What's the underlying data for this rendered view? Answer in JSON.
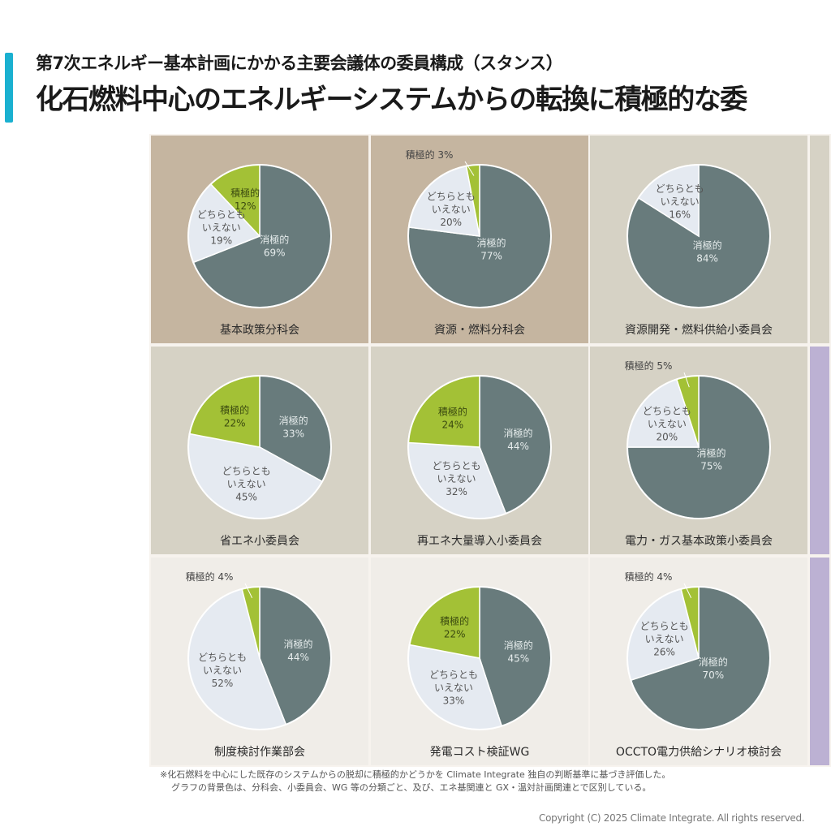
{
  "header": {
    "subtitle": "第7次エネルギー基本計画にかかる主要会議体の委員構成（スタンス）",
    "title": "化石燃料中心のエネルギーシステムからの転換に積極的な委",
    "accent_color": "#1ab0d0"
  },
  "colors": {
    "negative": "#687b7c",
    "neutral": "#e5eaf1",
    "positive": "#a3c136",
    "bg_bunkakai": "#c5b5a0",
    "bg_shoiinkai": "#d6d2c5",
    "bg_wg": "#f0ede8",
    "bg_gx": "#bcb1d3"
  },
  "category_labels": {
    "negative": "消極的",
    "neutral_line1": "どちらとも",
    "neutral_line2": "いえない",
    "positive": "積極的"
  },
  "chart_data": [
    {
      "type": "pie",
      "title": "基本政策分科会",
      "bg": "bg_bunkakai",
      "labels": [
        "積極的",
        "どちらともいえない",
        "消極的"
      ],
      "values": [
        12,
        19,
        69
      ]
    },
    {
      "type": "pie",
      "title": "資源・燃料分科会",
      "bg": "bg_bunkakai",
      "labels": [
        "積極的",
        "どちらともいえない",
        "消極的"
      ],
      "values": [
        3,
        20,
        77
      ]
    },
    {
      "type": "pie",
      "title": "資源開発・燃料供給小委員会",
      "bg": "bg_shoiinkai",
      "labels": [
        "積極的",
        "どちらともいえない",
        "消極的"
      ],
      "values": [
        0,
        16,
        84
      ]
    },
    {
      "type": "pie",
      "title": "省エネ小委員会",
      "bg": "bg_shoiinkai",
      "labels": [
        "積極的",
        "どちらともいえない",
        "消極的"
      ],
      "values": [
        22,
        45,
        33
      ]
    },
    {
      "type": "pie",
      "title": "再エネ大量導入小委員会",
      "bg": "bg_shoiinkai",
      "labels": [
        "積極的",
        "どちらともいえない",
        "消極的"
      ],
      "values": [
        24,
        32,
        44
      ]
    },
    {
      "type": "pie",
      "title": "電力・ガス基本政策小委員会",
      "bg": "bg_shoiinkai",
      "labels": [
        "積極的",
        "どちらともいえない",
        "消極的"
      ],
      "values": [
        5,
        20,
        75
      ]
    },
    {
      "type": "pie",
      "title": "制度検討作業部会",
      "bg": "bg_wg",
      "labels": [
        "積極的",
        "どちらともいえない",
        "消極的"
      ],
      "values": [
        4,
        52,
        44
      ]
    },
    {
      "type": "pie",
      "title": "発電コスト検証WG",
      "bg": "bg_wg",
      "labels": [
        "積極的",
        "どちらともいえない",
        "消極的"
      ],
      "values": [
        22,
        33,
        45
      ]
    },
    {
      "type": "pie",
      "title": "OCCTO電力供給シナリオ検討会",
      "bg": "bg_wg",
      "labels": [
        "積極的",
        "どちらともいえない",
        "消極的"
      ],
      "values": [
        4,
        26,
        70
      ]
    }
  ],
  "footnote": {
    "line1": "※化石燃料を中心にした既存のシステムからの脱却に積極的かどうかを Climate Integrate 独自の判断基準に基づき評価した。",
    "line2": "グラフの背景色は、分科会、小委員会、WG 等の分類ごと、及び、エネ基関連と GX・温対計画関連とで区別している。"
  },
  "copyright": "Copyright (C) 2025 Climate Integrate. All rights reserved."
}
